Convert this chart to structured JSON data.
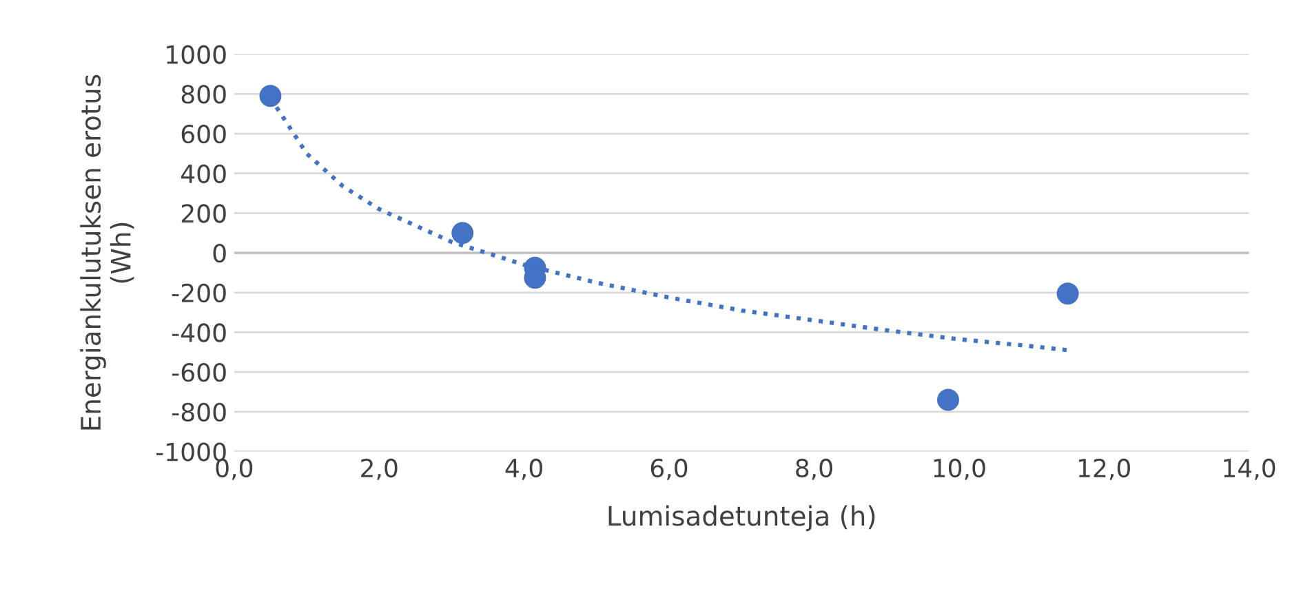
{
  "chart_data": {
    "type": "scatter",
    "xlabel": "Lumisadetunteja (h)",
    "ylabel": "Energiankulutuksen erotus\n(Wh)",
    "xlim": [
      0,
      14
    ],
    "ylim": [
      -1000,
      1000
    ],
    "xticks": [
      {
        "value": 0,
        "label": "0,0"
      },
      {
        "value": 2,
        "label": "2,0"
      },
      {
        "value": 4,
        "label": "4,0"
      },
      {
        "value": 6,
        "label": "6,0"
      },
      {
        "value": 8,
        "label": "8,0"
      },
      {
        "value": 10,
        "label": "10,0"
      },
      {
        "value": 12,
        "label": "12,0"
      },
      {
        "value": 14,
        "label": "14,0"
      }
    ],
    "yticks": [
      -1000,
      -800,
      -600,
      -400,
      -200,
      0,
      200,
      400,
      600,
      800,
      1000
    ],
    "grid": "y",
    "legend": false,
    "series": [
      {
        "color": "#4472c4",
        "marker": "circle",
        "x": [
          0.5,
          3.15,
          4.15,
          4.15,
          9.85,
          11.5
        ],
        "values": [
          790,
          100,
          -75,
          -125,
          -740,
          -205
        ]
      },
      {
        "type": "line",
        "color": "#4472c4",
        "marker": "none",
        "line_style": "dotted",
        "x": [
          0.5,
          1,
          1.5,
          2,
          3,
          4,
          5,
          6,
          7,
          8,
          9,
          10,
          11,
          11.5
        ],
        "values": [
          780,
          500,
          335,
          220,
          55,
          -60,
          -150,
          -225,
          -290,
          -340,
          -390,
          -435,
          -470,
          -490
        ]
      }
    ]
  }
}
